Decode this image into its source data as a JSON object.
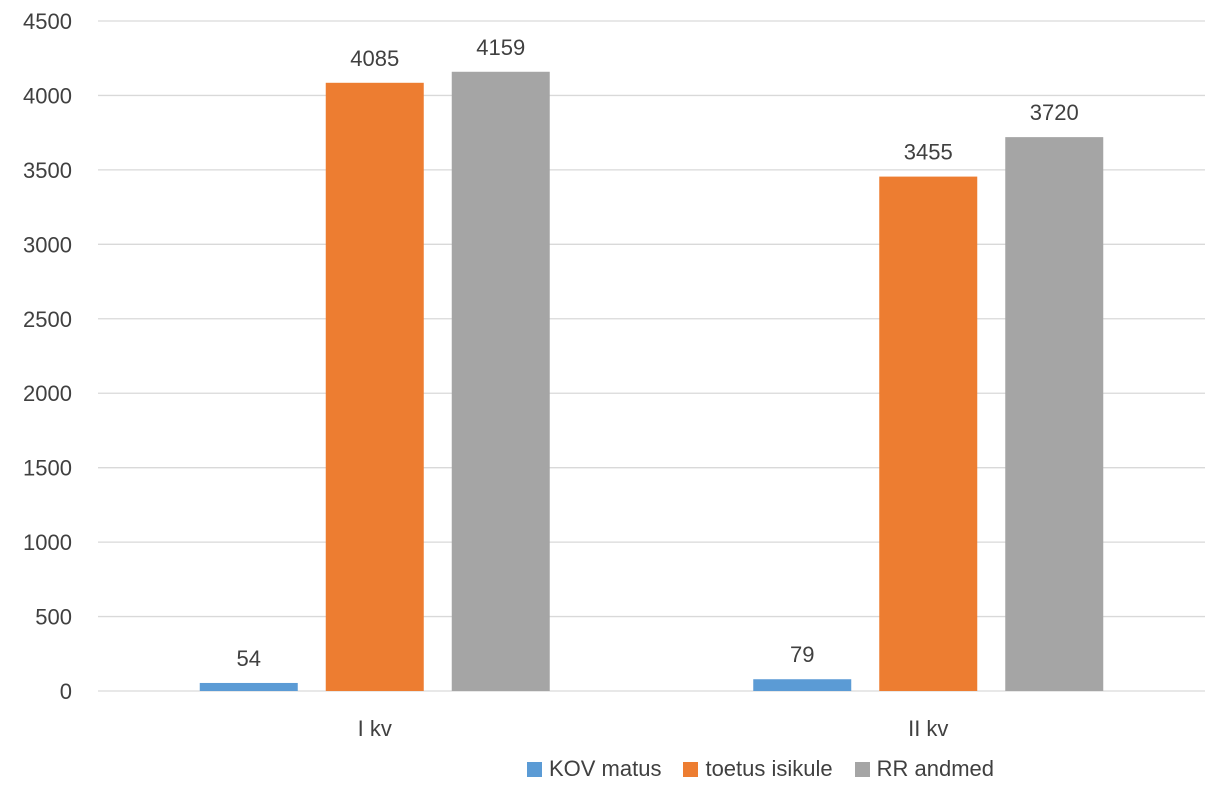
{
  "chart_data": {
    "type": "bar",
    "categories": [
      "I kv",
      "II kv"
    ],
    "series": [
      {
        "name": "KOV matus",
        "values": [
          54,
          79
        ],
        "color": "#5B9BD5"
      },
      {
        "name": "toetus isikule",
        "values": [
          4085,
          3455
        ],
        "color": "#ED7D31"
      },
      {
        "name": "RR andmed",
        "values": [
          4159,
          3720
        ],
        "color": "#A5A5A5"
      }
    ],
    "ylim": [
      0,
      4500
    ],
    "yticks": [
      0,
      500,
      1000,
      1500,
      2000,
      2500,
      3000,
      3500,
      4000,
      4500
    ],
    "grid": true,
    "legend_position": "bottom",
    "data_labels": true
  }
}
